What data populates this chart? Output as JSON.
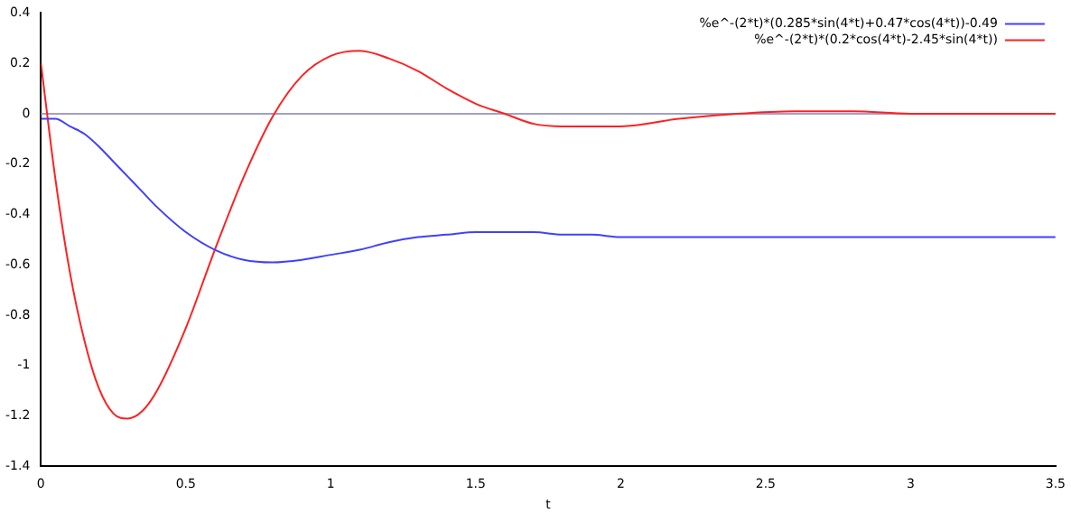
{
  "chart_data": {
    "type": "line",
    "xlabel": "t",
    "xlim": [
      0,
      3.5
    ],
    "xticks": [
      0,
      0.5,
      1,
      1.5,
      2,
      2.5,
      3,
      3.5
    ],
    "ylim": [
      -1.4,
      0.4
    ],
    "yticks": [
      -1.4,
      -1.2,
      -1,
      -0.8,
      -0.6,
      -0.4,
      -0.2,
      0,
      0.2,
      0.4
    ],
    "grid": false,
    "legend": "top right",
    "marker": "none",
    "line_style": "solid",
    "ref_lines": [
      {
        "axis": "y",
        "value": 0,
        "color": "#a0a0c8"
      }
    ],
    "x": [
      0,
      0.05,
      0.1,
      0.15,
      0.2,
      0.25,
      0.3,
      0.35,
      0.4,
      0.5,
      0.6,
      0.7,
      0.8,
      0.9,
      1,
      1.1,
      1.2,
      1.3,
      1.4,
      1.5,
      1.6,
      1.7,
      1.8,
      1.9,
      2,
      2.2,
      2.4,
      2.6,
      2.8,
      3,
      3.25,
      3.5
    ],
    "series": [
      {
        "name": "%e^-(2*t)*(0.285*sin(4*t)+0.47*cos(4*t))-0.49",
        "color": "#4040ff",
        "values": [
          -0.02,
          -0.02,
          -0.05,
          -0.08,
          -0.13,
          -0.19,
          -0.25,
          -0.31,
          -0.37,
          -0.47,
          -0.54,
          -0.58,
          -0.59,
          -0.58,
          -0.56,
          -0.54,
          -0.51,
          -0.49,
          -0.48,
          -0.47,
          -0.47,
          -0.47,
          -0.48,
          -0.48,
          -0.49,
          -0.49,
          -0.49,
          -0.49,
          -0.49,
          -0.49,
          -0.49,
          -0.49
        ]
      },
      {
        "name": "%e^-(2*t)*(0.2*cos(4*t)-2.45*sin(4*t))",
        "color": "#ff2020",
        "values": [
          0.2,
          -0.26,
          -0.63,
          -0.9,
          -1.09,
          -1.19,
          -1.21,
          -1.18,
          -1.1,
          -0.85,
          -0.54,
          -0.25,
          -0.01,
          0.15,
          0.23,
          0.25,
          0.22,
          0.17,
          0.1,
          0.04,
          0,
          -0.04,
          -0.05,
          -0.05,
          -0.05,
          -0.02,
          0,
          0.01,
          0.01,
          0,
          0,
          0
        ]
      }
    ]
  }
}
